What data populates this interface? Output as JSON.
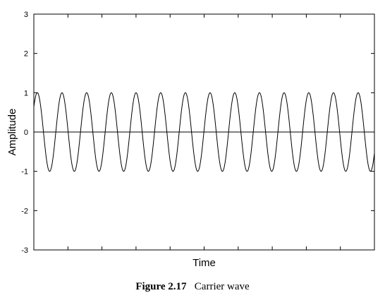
{
  "caption": {
    "label": "Figure 2.17",
    "text": "Carrier wave"
  },
  "chart_data": {
    "type": "line",
    "title": "",
    "xlabel": "Time",
    "ylabel": "Amplitude",
    "ylim": [
      -3,
      3
    ],
    "y_ticks": [
      3,
      2,
      1,
      0,
      -1,
      -2,
      -3
    ],
    "x_ticks_labeled": false,
    "x_tick_count": 9,
    "grid": false,
    "zero_line": true,
    "series": [
      {
        "type": "sine",
        "amplitude": 1,
        "cycles": 13.8,
        "phase_cycles": 0.14,
        "color": "#000000"
      }
    ]
  }
}
